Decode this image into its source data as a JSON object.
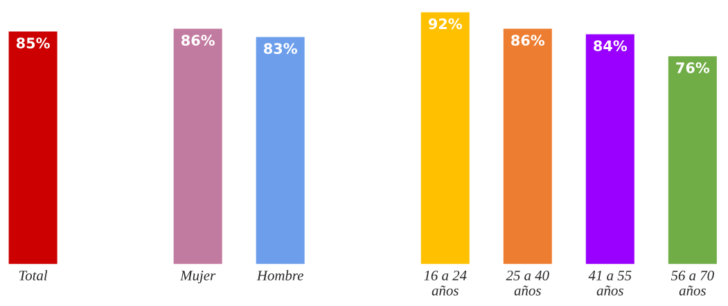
{
  "chart_data": {
    "type": "bar",
    "categories": [
      "Total",
      null,
      "Mujer",
      "Hombre",
      null,
      "16 a 24\naños",
      "25 a 40\naños",
      "41 a 55\naños",
      "56 a 70\naños"
    ],
    "values": [
      85,
      null,
      86,
      83,
      null,
      92,
      86,
      84,
      76
    ],
    "colors": [
      "#cc0000",
      "#ffffff",
      "#c27ba0",
      "#6d9eeb",
      "#ffffff",
      "#ffc000",
      "#ed7d31",
      "#9900ff",
      "#70ad47"
    ],
    "value_labels": [
      "85%",
      null,
      "86%",
      "83%",
      null,
      "92%",
      "86%",
      "84%",
      "76%"
    ],
    "grid": false,
    "legend": false
  }
}
